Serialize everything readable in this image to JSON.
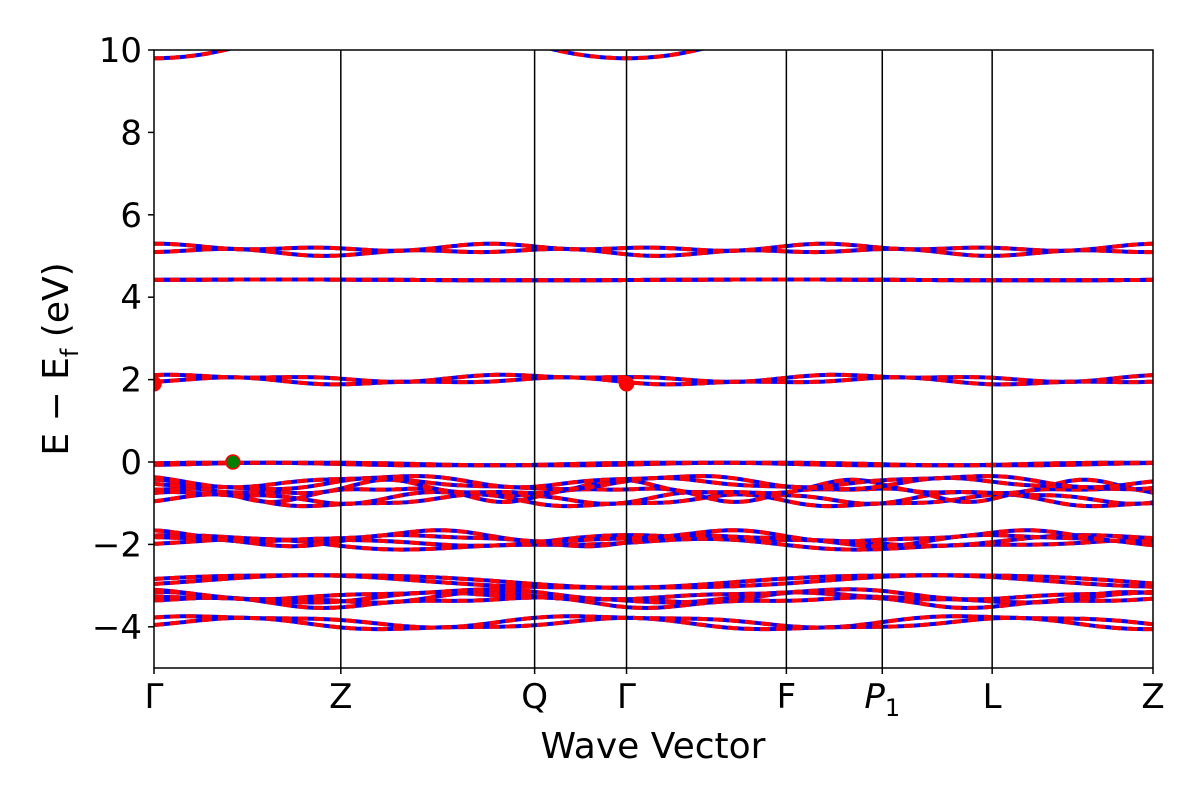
{
  "chart_data": {
    "type": "line",
    "title": "",
    "xlabel": "Wave Vector",
    "ylabel": "E − E_f (eV)",
    "ylabel_parts": {
      "main": "E − E",
      "sub": "f",
      "unit": " (eV)"
    },
    "ylim": [
      -5,
      10
    ],
    "yticks": [
      -4,
      -2,
      0,
      2,
      4,
      6,
      8,
      10
    ],
    "ytick_labels": [
      "−4",
      "−2",
      "0",
      "2",
      "4",
      "6",
      "8",
      "10"
    ],
    "x_range": [
      0,
      1
    ],
    "high_symmetry_points": [
      {
        "label": "Γ",
        "x": 0.0
      },
      {
        "label": "Z",
        "x": 0.187
      },
      {
        "label": "Q",
        "x": 0.381
      },
      {
        "label": "Γ",
        "x": 0.473
      },
      {
        "label": "F",
        "x": 0.633
      },
      {
        "label": "P",
        "sub": "1",
        "italic": true,
        "x": 0.729
      },
      {
        "label": "L",
        "x": 0.839
      },
      {
        "label": "Z",
        "x": 1.0
      }
    ],
    "grid": false,
    "series_style": {
      "spin_up_color": "#0000ff",
      "spin_down_color": "#ff0000"
    },
    "markers": [
      {
        "kind": "VBM",
        "x": 0.079,
        "y": 0.0,
        "color": "#008000"
      },
      {
        "kind": "CBM",
        "x": 0.0,
        "y": 1.9,
        "color": "#ff0000"
      },
      {
        "kind": "CBM",
        "x": 0.473,
        "y": 1.9,
        "color": "#ff0000"
      }
    ],
    "bands": [
      {
        "base": -3.9,
        "amp": 0.12,
        "freq": 2.6,
        "phase": 0.3,
        "split": 0.09
      },
      {
        "base": -3.35,
        "amp": 0.1,
        "freq": 3.1,
        "phase": 1.1,
        "split": 0.1
      },
      {
        "base": -3.25,
        "amp": 0.1,
        "freq": 2.8,
        "phase": 2.4,
        "split": 0.08
      },
      {
        "base": -2.9,
        "amp": 0.15,
        "freq": 1.6,
        "phase": 0.0,
        "split": 0.06
      },
      {
        "base": -1.95,
        "amp": 0.1,
        "freq": 2.2,
        "phase": 0.7,
        "split": 0.1
      },
      {
        "base": -1.85,
        "amp": 0.12,
        "freq": 3.4,
        "phase": 2.0,
        "split": 0.08
      },
      {
        "base": -0.9,
        "amp": 0.12,
        "freq": 3.8,
        "phase": 0.4,
        "split": 0.1
      },
      {
        "base": -0.7,
        "amp": 0.15,
        "freq": 4.3,
        "phase": 1.5,
        "split": 0.12
      },
      {
        "base": -0.5,
        "amp": 0.12,
        "freq": 3.5,
        "phase": 2.7,
        "split": 0.08
      },
      {
        "base": -0.05,
        "amp": 0.03,
        "freq": 2.2,
        "phase": 0.0,
        "split": 0.02
      },
      {
        "base": 2.0,
        "amp": 0.06,
        "freq": 3.0,
        "phase": 0.5,
        "split": 0.08
      },
      {
        "base": 4.42,
        "amp": 0.01,
        "freq": 2.0,
        "phase": 0.0,
        "split": 0.0
      },
      {
        "base": 5.15,
        "amp": 0.05,
        "freq": 3.0,
        "phase": 1.2,
        "split": 0.1
      }
    ],
    "top_band": {
      "min": 9.8,
      "center_x": 0.473,
      "left_min": 9.8
    }
  }
}
